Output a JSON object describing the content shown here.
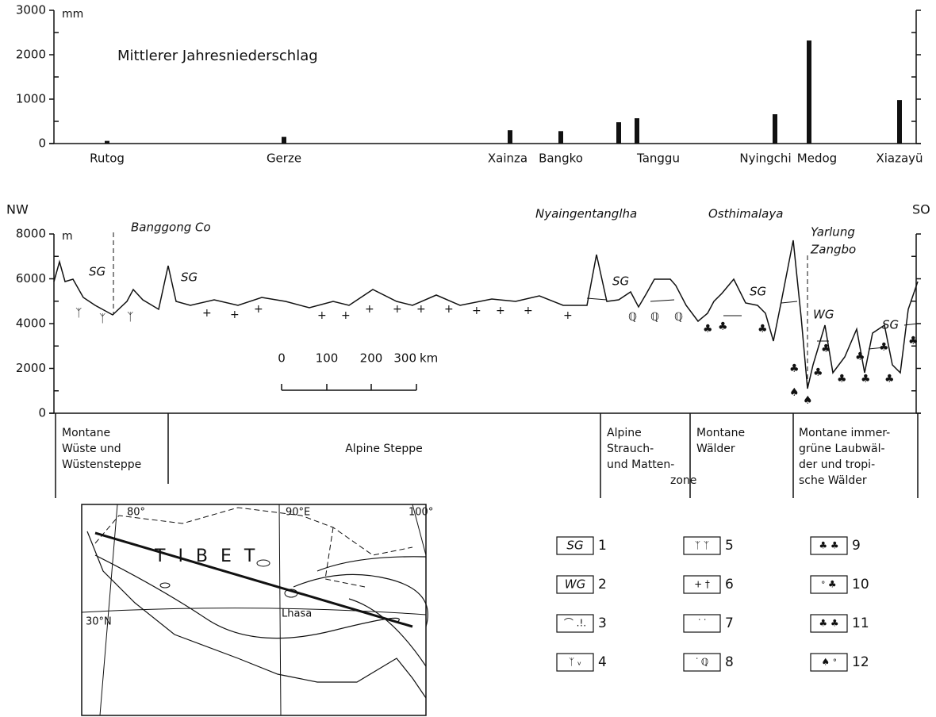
{
  "chart_data": {
    "type": "bar",
    "title": "Mittlerer Jahresniederschlag",
    "y_unit": "mm",
    "categories": [
      "Rutog",
      "Gerze",
      "Xainza",
      "Bangko",
      null,
      "Tanggu",
      "Nyingchi",
      "Medog",
      "Xiazayü"
    ],
    "values": [
      60,
      150,
      300,
      280,
      480,
      570,
      660,
      2320,
      980
    ],
    "color": "#111111",
    "ylim": [
      0,
      3000
    ],
    "yticks": [
      0,
      1000,
      2000,
      3000
    ],
    "minor_yticks": [
      500,
      1500,
      2500
    ]
  },
  "profile": {
    "y_unit": "m",
    "ylim": [
      0,
      8000
    ],
    "yticks": [
      0,
      2000,
      4000,
      6000,
      8000
    ],
    "minor_yticks": [
      1000,
      3000,
      5000,
      7000
    ],
    "left_label": "NW",
    "right_label": "SO",
    "annotations": [
      "Banggong Co",
      "Nyaingentanglha",
      "Osthimalaya",
      "Yarlung",
      "Zangbo",
      "SG",
      "SG",
      "SG",
      "SG",
      "SG",
      "WG"
    ],
    "scale": {
      "ticks": [
        "0",
        "100",
        "200",
        "300"
      ],
      "unit": "km"
    },
    "zones": [
      {
        "lines": [
          "Montane",
          "Wüste und",
          "Wüstensteppe"
        ]
      },
      {
        "lines": [
          "Alpine Steppe"
        ]
      },
      {
        "lines": [
          "Alpine",
          "Strauch-",
          "und Matten-",
          "zone"
        ]
      },
      {
        "lines": [
          "Montane",
          "Wälder"
        ]
      },
      {
        "lines": [
          "Montane immer-",
          "grüne Laubwäl-",
          "der und tropi-",
          "sche Wälder"
        ]
      }
    ]
  },
  "map": {
    "labels": [
      "80°",
      "90°E",
      "100°",
      "TIBET",
      "30°N",
      "Lhasa"
    ]
  },
  "legend": {
    "items": [
      {
        "symbol": "SG",
        "number": "1"
      },
      {
        "symbol": "WG",
        "number": "2"
      },
      {
        "number": "3"
      },
      {
        "number": "4"
      },
      {
        "number": "5"
      },
      {
        "number": "6"
      },
      {
        "number": "7"
      },
      {
        "number": "8"
      },
      {
        "number": "9"
      },
      {
        "number": "10"
      },
      {
        "number": "11"
      },
      {
        "number": "12"
      }
    ]
  }
}
